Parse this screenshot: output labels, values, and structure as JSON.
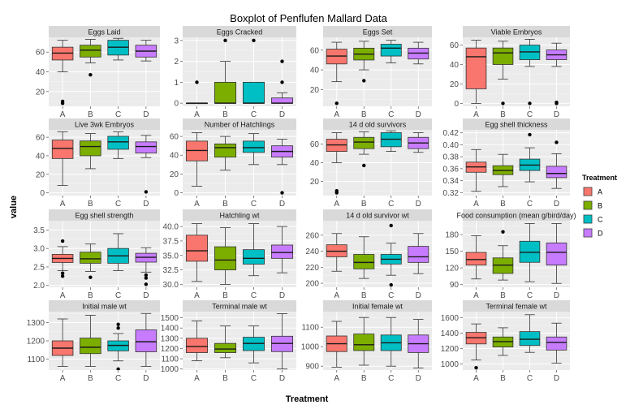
{
  "chart_data": {
    "type": "boxplot",
    "title": "Boxplot of Penflufen Mallard Data",
    "xlabel": "Treatment",
    "ylabel": "value",
    "categories": [
      "A",
      "B",
      "C",
      "D"
    ],
    "legend": {
      "title": "Treatment",
      "position": "right",
      "entries": [
        {
          "label": "A",
          "color": "#F8766D"
        },
        {
          "label": "B",
          "color": "#7CAE00"
        },
        {
          "label": "C",
          "color": "#00BFC4"
        },
        {
          "label": "D",
          "color": "#C77CFF"
        }
      ]
    },
    "panel_background": "#EBEBEB",
    "strip_background": "#D9D9D9",
    "grid": true,
    "panels": [
      {
        "title": "Eggs Laid",
        "ylim": [
          5,
          75
        ],
        "yticks": [
          20,
          40,
          60
        ],
        "boxes": [
          {
            "min": 40,
            "q1": 52,
            "median": 59,
            "q3": 65,
            "max": 72,
            "outliers": [
              8,
              10
            ]
          },
          {
            "min": 49,
            "q1": 55,
            "median": 62,
            "q3": 67,
            "max": 73,
            "outliers": [
              37
            ]
          },
          {
            "min": 52,
            "q1": 57,
            "median": 65,
            "q3": 72,
            "max": 74,
            "outliers": []
          },
          {
            "min": 51,
            "q1": 55,
            "median": 61,
            "q3": 67,
            "max": 72,
            "outliers": []
          }
        ]
      },
      {
        "title": "Eggs Cracked",
        "ylim": [
          -0.15,
          3.15
        ],
        "yticks": [
          0,
          1,
          2,
          3
        ],
        "boxes": [
          {
            "min": 0,
            "q1": 0,
            "median": 0,
            "q3": 0,
            "max": 0,
            "outliers": [
              1
            ]
          },
          {
            "min": 0,
            "q1": 0,
            "median": 0,
            "q3": 1,
            "max": 2,
            "outliers": [
              3
            ]
          },
          {
            "min": 0,
            "q1": 0,
            "median": 0,
            "q3": 1,
            "max": 1,
            "outliers": [
              3
            ]
          },
          {
            "min": 0,
            "q1": 0,
            "median": 0,
            "q3": 0.25,
            "max": 0.5,
            "outliers": [
              1,
              2
            ]
          }
        ]
      },
      {
        "title": "Eggs Set",
        "ylim": [
          3,
          73
        ],
        "yticks": [
          20,
          40,
          60
        ],
        "boxes": [
          {
            "min": 28,
            "q1": 46,
            "median": 54,
            "q3": 61,
            "max": 68,
            "outliers": [
              6
            ]
          },
          {
            "min": 40,
            "q1": 50,
            "median": 56,
            "q3": 62,
            "max": 69,
            "outliers": [
              29
            ]
          },
          {
            "min": 47,
            "q1": 54,
            "median": 62,
            "q3": 66,
            "max": 70,
            "outliers": []
          },
          {
            "min": 46,
            "q1": 51,
            "median": 57,
            "q3": 62,
            "max": 68,
            "outliers": []
          }
        ]
      },
      {
        "title": "Viable Embryos",
        "ylim": [
          -3,
          68
        ],
        "yticks": [
          0,
          20,
          40,
          60
        ],
        "boxes": [
          {
            "min": 0,
            "q1": 15,
            "median": 48,
            "q3": 57,
            "max": 65,
            "outliers": []
          },
          {
            "min": 25,
            "q1": 40,
            "median": 52,
            "q3": 57,
            "max": 64,
            "outliers": [
              0
            ]
          },
          {
            "min": 38,
            "q1": 45,
            "median": 53,
            "q3": 60,
            "max": 66,
            "outliers": [
              0
            ]
          },
          {
            "min": 38,
            "q1": 45,
            "median": 50,
            "q3": 55,
            "max": 62,
            "outliers": [
              0,
              1
            ]
          }
        ]
      },
      {
        "title": "Live 3wk Embryos",
        "ylim": [
          -3,
          68
        ],
        "yticks": [
          0,
          20,
          40,
          60
        ],
        "boxes": [
          {
            "min": 8,
            "q1": 37,
            "median": 48,
            "q3": 57,
            "max": 66,
            "outliers": []
          },
          {
            "min": 26,
            "q1": 40,
            "median": 50,
            "q3": 56,
            "max": 64,
            "outliers": []
          },
          {
            "min": 37,
            "q1": 47,
            "median": 55,
            "q3": 61,
            "max": 66,
            "outliers": []
          },
          {
            "min": 38,
            "q1": 43,
            "median": 50,
            "q3": 55,
            "max": 62,
            "outliers": [
              1
            ]
          }
        ]
      },
      {
        "title": "Number of Hatchlings",
        "ylim": [
          -3,
          67
        ],
        "yticks": [
          0,
          20,
          40,
          60
        ],
        "boxes": [
          {
            "min": 7,
            "q1": 34,
            "median": 45,
            "q3": 55,
            "max": 64,
            "outliers": []
          },
          {
            "min": 24,
            "q1": 38,
            "median": 48,
            "q3": 52,
            "max": 60,
            "outliers": []
          },
          {
            "min": 30,
            "q1": 43,
            "median": 48,
            "q3": 55,
            "max": 63,
            "outliers": []
          },
          {
            "min": 30,
            "q1": 38,
            "median": 44,
            "q3": 50,
            "max": 57,
            "outliers": [
              0
            ]
          }
        ]
      },
      {
        "title": "14 d old survivors",
        "ylim": [
          5,
          75
        ],
        "yticks": [
          20,
          40,
          60
        ],
        "boxes": [
          {
            "min": 40,
            "q1": 52,
            "median": 59,
            "q3": 65,
            "max": 72,
            "outliers": [
              8,
              10
            ]
          },
          {
            "min": 49,
            "q1": 55,
            "median": 62,
            "q3": 67,
            "max": 73,
            "outliers": [
              37
            ]
          },
          {
            "min": 52,
            "q1": 57,
            "median": 65,
            "q3": 72,
            "max": 74,
            "outliers": []
          },
          {
            "min": 51,
            "q1": 55,
            "median": 61,
            "q3": 67,
            "max": 72,
            "outliers": []
          }
        ]
      },
      {
        "title": "Egg shell thickness",
        "ylim": [
          0.315,
          0.425
        ],
        "yticks": [
          0.32,
          0.34,
          0.36,
          0.38,
          0.4,
          0.42
        ],
        "boxes": [
          {
            "min": 0.322,
            "q1": 0.354,
            "median": 0.363,
            "q3": 0.371,
            "max": 0.392,
            "outliers": []
          },
          {
            "min": 0.33,
            "q1": 0.35,
            "median": 0.357,
            "q3": 0.365,
            "max": 0.384,
            "outliers": []
          },
          {
            "min": 0.338,
            "q1": 0.357,
            "median": 0.366,
            "q3": 0.376,
            "max": 0.395,
            "outliers": [
              0.417
            ]
          },
          {
            "min": 0.327,
            "q1": 0.345,
            "median": 0.352,
            "q3": 0.364,
            "max": 0.385,
            "outliers": [
              0.404
            ]
          }
        ]
      },
      {
        "title": "Egg shell strength",
        "ylim": [
          1.95,
          3.75
        ],
        "yticks": [
          2.0,
          2.5,
          3.0,
          3.5
        ],
        "boxes": [
          {
            "min": 2.4,
            "q1": 2.62,
            "median": 2.73,
            "q3": 2.84,
            "max": 3.05,
            "outliers": [
              2.25,
              2.33,
              3.2
            ]
          },
          {
            "min": 2.38,
            "q1": 2.6,
            "median": 2.72,
            "q3": 2.9,
            "max": 3.12,
            "outliers": [
              2.22
            ]
          },
          {
            "min": 2.4,
            "q1": 2.6,
            "median": 2.8,
            "q3": 3.0,
            "max": 3.4,
            "outliers": []
          },
          {
            "min": 2.36,
            "q1": 2.63,
            "median": 2.76,
            "q3": 2.87,
            "max": 3.02,
            "outliers": [
              2.03,
              2.2,
              2.28
            ]
          }
        ]
      },
      {
        "title": "Hatchling wt",
        "ylim": [
          29.5,
          41.0
        ],
        "yticks": [
          30.0,
          32.5,
          35.0,
          37.5,
          40.0
        ],
        "boxes": [
          {
            "min": 30.5,
            "q1": 34.0,
            "median": 35.8,
            "q3": 38.5,
            "max": 40.5,
            "outliers": []
          },
          {
            "min": 30.0,
            "q1": 32.5,
            "median": 34.2,
            "q3": 36.5,
            "max": 39.8,
            "outliers": []
          },
          {
            "min": 31.5,
            "q1": 33.5,
            "median": 34.5,
            "q3": 36.0,
            "max": 40.5,
            "outliers": []
          },
          {
            "min": 32.0,
            "q1": 34.5,
            "median": 35.5,
            "q3": 36.8,
            "max": 40.0,
            "outliers": []
          }
        ]
      },
      {
        "title": "14 d old survivor wt",
        "ylim": [
          195,
          278
        ],
        "yticks": [
          200,
          220,
          240,
          260
        ],
        "boxes": [
          {
            "min": 215,
            "q1": 233,
            "median": 240,
            "q3": 248,
            "max": 262,
            "outliers": []
          },
          {
            "min": 206,
            "q1": 218,
            "median": 226,
            "q3": 236,
            "max": 258,
            "outliers": []
          },
          {
            "min": 210,
            "q1": 224,
            "median": 230,
            "q3": 236,
            "max": 250,
            "outliers": [
              198,
              272
            ]
          },
          {
            "min": 212,
            "q1": 226,
            "median": 233,
            "q3": 246,
            "max": 262,
            "outliers": []
          }
        ]
      },
      {
        "title": "Food consumption (mean g/bird/day)",
        "ylim": [
          85,
          205
        ],
        "yticks": [
          90,
          120,
          150,
          180
        ],
        "boxes": [
          {
            "min": 100,
            "q1": 125,
            "median": 135,
            "q3": 148,
            "max": 178,
            "outliers": []
          },
          {
            "min": 98,
            "q1": 110,
            "median": 125,
            "q3": 138,
            "max": 160,
            "outliers": [
              185
            ]
          },
          {
            "min": 95,
            "q1": 130,
            "median": 148,
            "q3": 168,
            "max": 200,
            "outliers": []
          },
          {
            "min": 92,
            "q1": 125,
            "median": 148,
            "q3": 165,
            "max": 200,
            "outliers": []
          }
        ]
      },
      {
        "title": "Initial male wt",
        "ylim": [
          1040,
          1360
        ],
        "yticks": [
          1100,
          1200,
          1300
        ],
        "boxes": [
          {
            "min": 1060,
            "q1": 1120,
            "median": 1160,
            "q3": 1200,
            "max": 1320,
            "outliers": []
          },
          {
            "min": 1060,
            "q1": 1130,
            "median": 1165,
            "q3": 1215,
            "max": 1340,
            "outliers": []
          },
          {
            "min": 1090,
            "q1": 1145,
            "median": 1175,
            "q3": 1200,
            "max": 1240,
            "outliers": [
              1045,
              1270,
              1290
            ]
          },
          {
            "min": 1060,
            "q1": 1140,
            "median": 1195,
            "q3": 1260,
            "max": 1350,
            "outliers": []
          }
        ]
      },
      {
        "title": "Terminal male wt",
        "ylim": [
          990,
          1560
        ],
        "yticks": [
          1000,
          1100,
          1200,
          1300,
          1400,
          1500
        ],
        "boxes": [
          {
            "min": 1080,
            "q1": 1160,
            "median": 1220,
            "q3": 1300,
            "max": 1470,
            "outliers": []
          },
          {
            "min": 1110,
            "q1": 1160,
            "median": 1195,
            "q3": 1250,
            "max": 1420,
            "outliers": []
          },
          {
            "min": 1060,
            "q1": 1180,
            "median": 1250,
            "q3": 1310,
            "max": 1420,
            "outliers": []
          },
          {
            "min": 1000,
            "q1": 1170,
            "median": 1250,
            "q3": 1320,
            "max": 1540,
            "outliers": []
          }
        ]
      },
      {
        "title": "Initial female wt",
        "ylim": [
          880,
          1180
        ],
        "yticks": [
          900,
          1000,
          1100
        ],
        "boxes": [
          {
            "min": 895,
            "q1": 975,
            "median": 1015,
            "q3": 1055,
            "max": 1130,
            "outliers": []
          },
          {
            "min": 905,
            "q1": 980,
            "median": 1010,
            "q3": 1065,
            "max": 1150,
            "outliers": []
          },
          {
            "min": 900,
            "q1": 980,
            "median": 1020,
            "q3": 1060,
            "max": 1150,
            "outliers": []
          },
          {
            "min": 890,
            "q1": 970,
            "median": 1015,
            "q3": 1060,
            "max": 1140,
            "outliers": []
          }
        ]
      },
      {
        "title": "Terminal female wt",
        "ylim": [
          920,
          1680
        ],
        "yticks": [
          1000,
          1200,
          1400,
          1600
        ],
        "boxes": [
          {
            "min": 1050,
            "q1": 1260,
            "median": 1340,
            "q3": 1410,
            "max": 1520,
            "outliers": [
              950
            ]
          },
          {
            "min": 1110,
            "q1": 1220,
            "median": 1290,
            "q3": 1350,
            "max": 1470,
            "outliers": []
          },
          {
            "min": 1150,
            "q1": 1240,
            "median": 1320,
            "q3": 1420,
            "max": 1640,
            "outliers": []
          },
          {
            "min": 1010,
            "q1": 1180,
            "median": 1280,
            "q3": 1350,
            "max": 1530,
            "outliers": []
          }
        ]
      }
    ]
  }
}
